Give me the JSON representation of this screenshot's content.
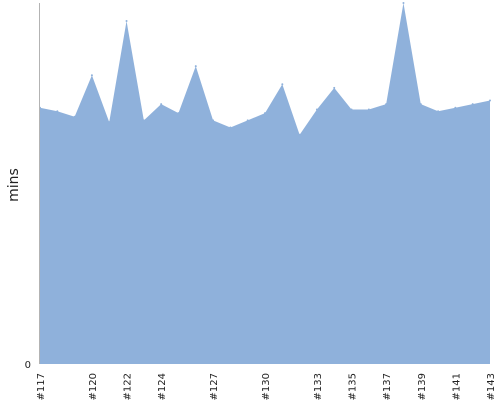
{
  "chart_data": {
    "type": "area",
    "ylabel": "mins",
    "x": [
      "#117",
      "#118",
      "#119",
      "#120",
      "#121",
      "#122",
      "#123",
      "#124",
      "#125",
      "#126",
      "#127",
      "#128",
      "#129",
      "#130",
      "#131",
      "#132",
      "#133",
      "#134",
      "#135",
      "#136",
      "#137",
      "#138",
      "#139",
      "#140",
      "#141",
      "#142",
      "#143"
    ],
    "x_tick_labels": [
      "#117",
      "#120",
      "#122",
      "#124",
      "#127",
      "#130",
      "#133",
      "#135",
      "#137",
      "#139",
      "#141",
      "#143"
    ],
    "y_tick_labels": [
      "0"
    ],
    "values": [
      71,
      70,
      68.5,
      80,
      67,
      95,
      67.5,
      72,
      69.5,
      82.5,
      67.5,
      65.5,
      67.5,
      69.5,
      77.5,
      63.5,
      70.5,
      76.5,
      70.5,
      70.5,
      72,
      100,
      72,
      70,
      71,
      72,
      73
    ],
    "ylim": [
      0,
      100
    ],
    "grid": false,
    "colors": {
      "area": "#8fb1db",
      "axis": "#b3b3b3"
    }
  }
}
